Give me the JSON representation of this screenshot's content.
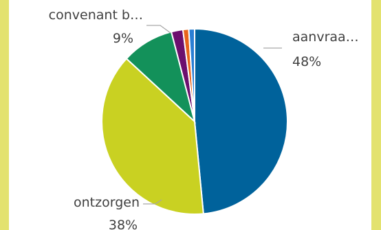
{
  "chart_data": {
    "type": "pie",
    "slices": [
      {
        "label": "aanvraa…",
        "value": 48,
        "value_label": "48%",
        "color": "#00629b"
      },
      {
        "label": "ontzorgen",
        "value": 38,
        "value_label": "38%",
        "color": "#c9d122"
      },
      {
        "label": "convenant b…",
        "value": 9,
        "value_label": "9%",
        "color": "#13915a"
      },
      {
        "label": "",
        "value": 2,
        "value_label": "",
        "color": "#6c0f6e"
      },
      {
        "label": "",
        "value": 1,
        "value_label": "",
        "color": "#e8641b"
      },
      {
        "label": "",
        "value": 1,
        "value_label": "",
        "color": "#2a7fd4"
      }
    ],
    "start_angle_deg": 0,
    "direction": "clockwise",
    "legend": "none",
    "data_labels": "outside with leader lines"
  }
}
